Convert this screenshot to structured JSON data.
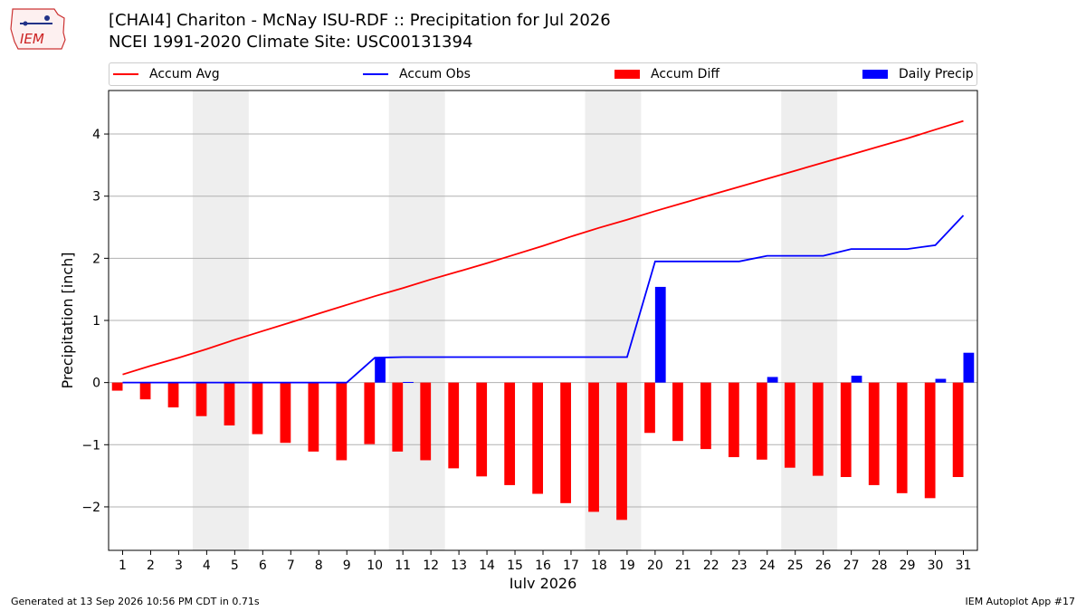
{
  "header": {
    "title": "[CHAI4] Chariton - McNay ISU-RDF :: Precipitation for Jul 2026",
    "subtitle": "NCEI 1991-2020 Climate Site: USC00131394",
    "logo_text": "IEM"
  },
  "footer": {
    "generated": "Generated at 13 Sep 2026 10:56 PM CDT in 0.71s",
    "app": "IEM Autoplot App #17"
  },
  "colors": {
    "avg": "#ff0000",
    "obs": "#0000ff",
    "diff": "#ff0000",
    "daily": "#0000ff",
    "weekend_band": "#eeeeee",
    "grid": "#b0b0b0"
  },
  "chart_data": {
    "type": "bar",
    "xlabel": "July 2026",
    "ylabel": "Precipitation [inch]",
    "ylim": [
      -2.7,
      4.7
    ],
    "yticks": [
      -2,
      -1,
      0,
      1,
      2,
      3,
      4
    ],
    "ytick_labels": [
      "−2",
      "−1",
      "0",
      "1",
      "2",
      "3",
      "4"
    ],
    "grid": true,
    "legend_position": "top",
    "x": [
      1,
      2,
      3,
      4,
      5,
      6,
      7,
      8,
      9,
      10,
      11,
      12,
      13,
      14,
      15,
      16,
      17,
      18,
      19,
      20,
      21,
      22,
      23,
      24,
      25,
      26,
      27,
      28,
      29,
      30,
      31
    ],
    "weekend_days": [
      [
        4,
        5
      ],
      [
        11,
        12
      ],
      [
        18,
        19
      ],
      [
        25,
        26
      ]
    ],
    "series": [
      {
        "name": "Accum Avg",
        "kind": "line",
        "values": [
          0.13,
          0.27,
          0.4,
          0.54,
          0.69,
          0.83,
          0.97,
          1.11,
          1.25,
          1.39,
          1.52,
          1.66,
          1.79,
          1.92,
          2.06,
          2.2,
          2.35,
          2.49,
          2.62,
          2.76,
          2.89,
          3.02,
          3.15,
          3.28,
          3.41,
          3.54,
          3.67,
          3.8,
          3.93,
          4.07,
          4.21
        ]
      },
      {
        "name": "Accum Obs",
        "kind": "line",
        "values": [
          0,
          0,
          0,
          0,
          0,
          0,
          0,
          0,
          0,
          0.4,
          0.41,
          0.41,
          0.41,
          0.41,
          0.41,
          0.41,
          0.41,
          0.41,
          0.41,
          1.95,
          1.95,
          1.95,
          1.95,
          2.04,
          2.04,
          2.04,
          2.15,
          2.15,
          2.15,
          2.21,
          2.69
        ]
      },
      {
        "name": "Accum Diff",
        "kind": "bar",
        "values": [
          -0.13,
          -0.27,
          -0.4,
          -0.54,
          -0.69,
          -0.83,
          -0.97,
          -1.11,
          -1.25,
          -0.99,
          -1.11,
          -1.25,
          -1.38,
          -1.51,
          -1.65,
          -1.79,
          -1.94,
          -2.08,
          -2.21,
          -0.81,
          -0.94,
          -1.07,
          -1.2,
          -1.24,
          -1.37,
          -1.5,
          -1.52,
          -1.65,
          -1.78,
          -1.86,
          -1.52
        ]
      },
      {
        "name": "Daily Precip",
        "kind": "bar",
        "values": [
          0,
          0,
          0,
          0,
          0,
          0,
          0,
          0,
          0,
          0.4,
          0.01,
          0,
          0,
          0,
          0,
          0,
          0,
          0,
          0,
          1.54,
          0,
          0,
          0,
          0.09,
          0,
          0,
          0.11,
          0,
          0,
          0.06,
          0.48
        ]
      }
    ]
  }
}
